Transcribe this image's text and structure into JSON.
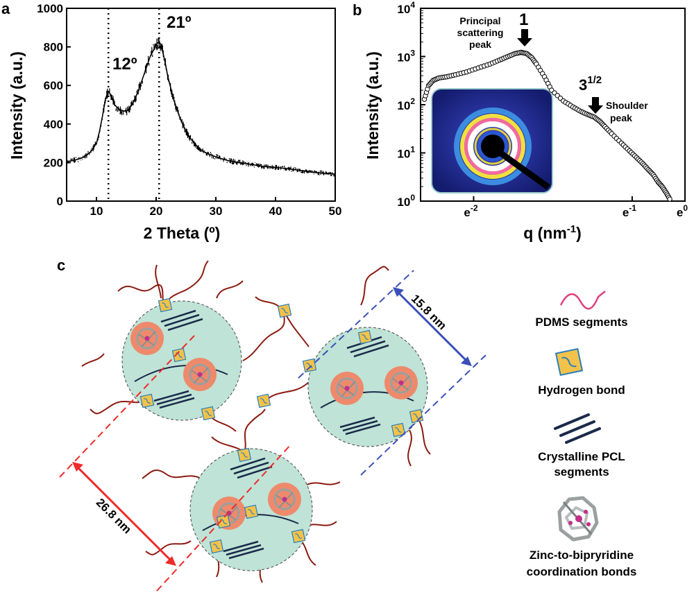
{
  "panels": {
    "a": "a",
    "b": "b",
    "c": "c"
  },
  "chart_data": [
    {
      "type": "line",
      "panel": "a",
      "xlabel": "2 Theta (º)",
      "ylabel": "Intensity (a.u.)",
      "xlim": [
        5,
        50
      ],
      "ylim": [
        0,
        1000
      ],
      "xticks": [
        10,
        20,
        30,
        40,
        50
      ],
      "yticks": [
        0,
        200,
        400,
        600,
        800,
        1000
      ],
      "x": [
        5,
        6,
        7,
        8,
        9,
        10,
        10.5,
        11,
        11.5,
        12,
        12.5,
        13,
        14,
        15,
        16,
        17,
        18,
        19,
        20,
        20.5,
        21,
        21.5,
        22,
        23,
        24,
        25,
        26,
        27,
        28,
        30,
        32,
        34,
        36,
        38,
        40,
        42,
        44,
        46,
        48,
        50
      ],
      "y": [
        205,
        210,
        218,
        230,
        255,
        300,
        360,
        440,
        530,
        570,
        545,
        500,
        470,
        465,
        500,
        570,
        660,
        750,
        810,
        830,
        790,
        720,
        640,
        520,
        430,
        360,
        315,
        280,
        255,
        230,
        210,
        200,
        190,
        180,
        175,
        168,
        160,
        150,
        145,
        140
      ],
      "annotations": [
        {
          "text": "12º",
          "x": 12
        },
        {
          "text": "21º",
          "x": 20.5
        }
      ]
    },
    {
      "type": "scatter",
      "panel": "b",
      "xlabel": "q (nm⁻¹)",
      "ylabel": "Intensity (a.u.)",
      "xscale": "log",
      "yscale": "log",
      "xlim": [
        0.0067,
        1
      ],
      "ylim": [
        1,
        10000
      ],
      "xtick_values": [
        0.0183,
        0.3679,
        1
      ],
      "xtick_labels": {
        "base": "e",
        "exponents": [
          "-2",
          "-1",
          "0"
        ]
      },
      "ytick_values": [
        1,
        10,
        100,
        1000,
        10000
      ],
      "ytick_labels": {
        "base": "10",
        "exponents": [
          "0",
          "1",
          "2",
          "3",
          "4"
        ]
      },
      "x": [
        0.0072,
        0.0078,
        0.0085,
        0.0095,
        0.011,
        0.013,
        0.016,
        0.02,
        0.025,
        0.03,
        0.035,
        0.04,
        0.045,
        0.05,
        0.055,
        0.06,
        0.07,
        0.08,
        0.1,
        0.12,
        0.14,
        0.16,
        0.18,
        0.2,
        0.22,
        0.25,
        0.3,
        0.35,
        0.4,
        0.45,
        0.5,
        0.55,
        0.6,
        0.65,
        0.7,
        0.75
      ],
      "y": [
        130,
        250,
        320,
        360,
        380,
        420,
        480,
        580,
        700,
        850,
        1000,
        1150,
        1220,
        1150,
        950,
        700,
        380,
        200,
        120,
        90,
        72,
        62,
        55,
        45,
        35,
        25,
        16,
        11,
        8,
        6,
        4.5,
        3.5,
        2.5,
        2,
        1.5,
        1.1
      ],
      "annotations": [
        {
          "text": "Principal",
          "line2": "scattering",
          "line3": "peak"
        },
        {
          "text": "1"
        },
        {
          "text": "3",
          "sup": "1/2"
        },
        {
          "text": "Shoulder",
          "line2": "peak"
        }
      ]
    }
  ],
  "schematic": {
    "dim_blue": "15.8 nm",
    "dim_red": "26.8 nm",
    "legend": [
      {
        "label": "PDMS segments"
      },
      {
        "label": "Hydrogen bond"
      },
      {
        "label": "Crystalline PCL",
        "label2": "segments"
      },
      {
        "label": "Zinc-to-bipryridine",
        "label2": "coordination bonds"
      }
    ]
  },
  "colors": {
    "pdms_legend": "#e0407a",
    "chain": "#8b1a10",
    "domain_fill": "#bfe3d6",
    "core": "#ee8a6c",
    "hbond_fill": "#f2c24a",
    "hbond_edge": "#2a7fbf",
    "pcl": "#1a2a4a",
    "dim_blue": "#3a4fb8",
    "dim_red": "#ee2a2a"
  }
}
